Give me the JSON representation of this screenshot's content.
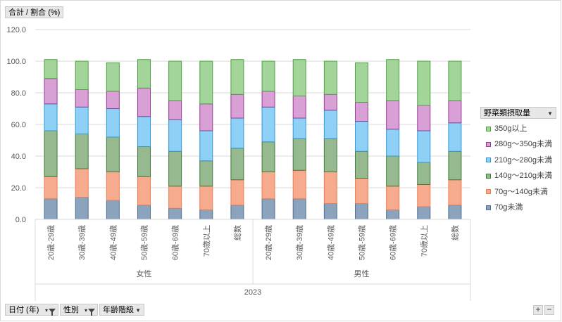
{
  "header": {
    "field_label": "合計 / 割合 (%)"
  },
  "legend_field": {
    "label": "野菜類摂取量",
    "dropdown_icon": "dropdown-arrow-icon"
  },
  "filters": [
    {
      "label": "日付 (年)",
      "icon": "filter-icon"
    },
    {
      "label": "性別",
      "icon": "filter-icon"
    },
    {
      "label": "年齢階級",
      "icon": "dropdown-arrow-icon"
    }
  ],
  "zoom": {
    "plus": "+",
    "minus": "−"
  },
  "colors": {
    "fills": [
      "#8ba3bd",
      "#f6ab8f",
      "#97b98f",
      "#8fd0f7",
      "#d8a0d4",
      "#a3d59b"
    ],
    "borders": [
      "#4f6f93",
      "#f07b4d",
      "#3e7b3a",
      "#2f98d8",
      "#9a3a96",
      "#4da041"
    ]
  },
  "chart_data": {
    "type": "bar",
    "stacked": true,
    "title": "",
    "ylabel": "合計 / 割合 (%)",
    "ylim": [
      0,
      120
    ],
    "yticks": [
      "0.0",
      "20.0",
      "40.0",
      "60.0",
      "80.0",
      "100.0",
      "120.0"
    ],
    "categories": [
      "20歳-29歳",
      "30歳-39歳",
      "40歳-49歳",
      "50歳-59歳",
      "60歳-69歳",
      "70歳以上",
      "総数",
      "20歳-29歳",
      "30歳-39歳",
      "40歳-49歳",
      "50歳-59歳",
      "60歳-69歳",
      "70歳以上",
      "総数"
    ],
    "groups": [
      {
        "name": "女性",
        "count": 7
      },
      {
        "name": "男性",
        "count": 7
      }
    ],
    "year": "2023",
    "series": [
      {
        "name": "70g未満",
        "values": [
          13,
          14,
          12,
          9,
          7,
          6,
          9,
          13,
          13,
          10,
          10,
          6,
          8,
          9
        ]
      },
      {
        "name": "70g～140g未満",
        "values": [
          14,
          18,
          18,
          18,
          14,
          15,
          16,
          17,
          18,
          20,
          16,
          15,
          14,
          16
        ]
      },
      {
        "name": "140g～210g未満",
        "values": [
          29,
          22,
          22,
          19,
          22,
          16,
          20,
          19,
          20,
          21,
          17,
          19,
          14,
          18
        ]
      },
      {
        "name": "210g～280g未満",
        "values": [
          17,
          17,
          18,
          19,
          20,
          19,
          19,
          22,
          13,
          18,
          19,
          17,
          20,
          18
        ]
      },
      {
        "name": "280g～350g未満",
        "values": [
          16,
          11,
          11,
          18,
          12,
          17,
          15,
          10,
          14,
          10,
          12,
          18,
          16,
          14
        ]
      },
      {
        "name": "350g以上",
        "values": [
          12,
          18,
          18,
          18,
          25,
          27,
          22,
          19,
          23,
          21,
          25,
          26,
          28,
          25
        ]
      }
    ],
    "legend_order": [
      "350g以上",
      "280g～350g未満",
      "210g～280g未満",
      "140g～210g未満",
      "70g～140g未満",
      "70g未満"
    ],
    "legend_position": "right"
  }
}
